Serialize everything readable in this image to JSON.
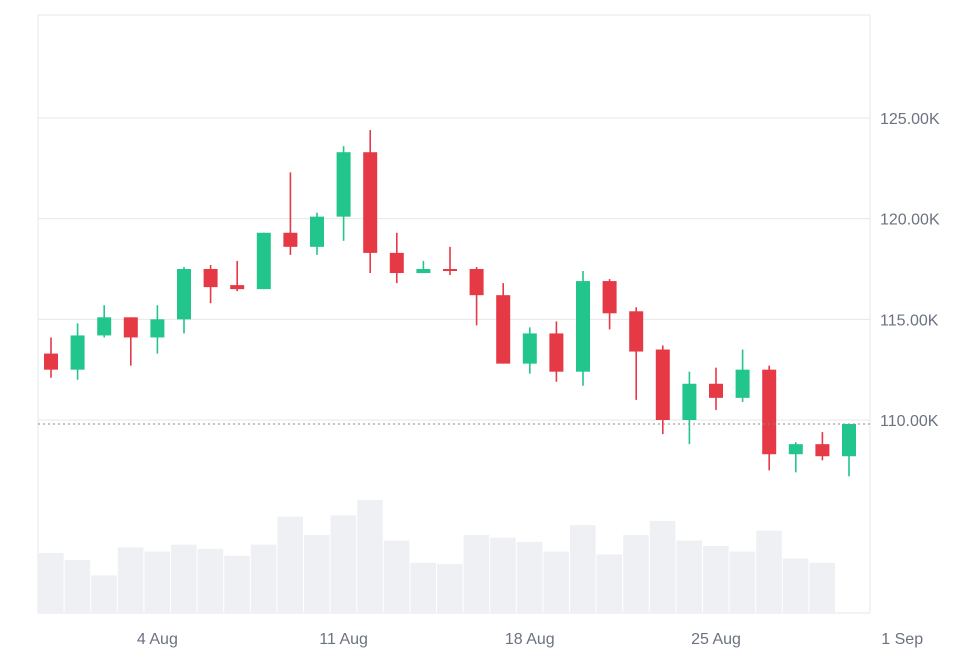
{
  "chart_data": {
    "type": "candlestick",
    "y_ticks": [
      {
        "label": "125.00K",
        "value": 125000
      },
      {
        "label": "120.00K",
        "value": 120000
      },
      {
        "label": "115.00K",
        "value": 115000
      },
      {
        "label": "110.00K",
        "value": 110000
      }
    ],
    "x_ticks": [
      {
        "label": "4 Aug",
        "date": "2025-08-04"
      },
      {
        "label": "11 Aug",
        "date": "2025-08-11"
      },
      {
        "label": "18 Aug",
        "date": "2025-08-18"
      },
      {
        "label": "25 Aug",
        "date": "2025-08-25"
      },
      {
        "label": "1 Sep",
        "date": "2025-09-01"
      }
    ],
    "ylim": [
      100000,
      130000
    ],
    "current_price": 109800,
    "grid": true,
    "colors": {
      "up": "#22c58b",
      "down": "#e63946",
      "volume": "#eef0f3",
      "grid": "#e5e7eb",
      "dotted": "#888888"
    },
    "candles": [
      {
        "date": "2025-07-31",
        "open": 113300,
        "high": 114100,
        "low": 112100,
        "close": 112500,
        "volume": 43
      },
      {
        "date": "2025-08-01",
        "open": 112500,
        "high": 114800,
        "low": 112000,
        "close": 114200,
        "volume": 38
      },
      {
        "date": "2025-08-02",
        "open": 114200,
        "high": 115700,
        "low": 114100,
        "close": 115100,
        "volume": 27
      },
      {
        "date": "2025-08-03",
        "open": 115100,
        "high": 115100,
        "low": 112700,
        "close": 114100,
        "volume": 47
      },
      {
        "date": "2025-08-04",
        "open": 114100,
        "high": 115700,
        "low": 113300,
        "close": 115000,
        "volume": 44
      },
      {
        "date": "2025-08-05",
        "open": 115000,
        "high": 117600,
        "low": 114300,
        "close": 117500,
        "volume": 49
      },
      {
        "date": "2025-08-06",
        "open": 117500,
        "high": 117700,
        "low": 115800,
        "close": 116600,
        "volume": 46
      },
      {
        "date": "2025-08-07",
        "open": 116700,
        "high": 117900,
        "low": 116400,
        "close": 116500,
        "volume": 41
      },
      {
        "date": "2025-08-08",
        "open": 116500,
        "high": 119300,
        "low": 116500,
        "close": 119300,
        "volume": 49
      },
      {
        "date": "2025-08-09",
        "open": 119300,
        "high": 122300,
        "low": 118200,
        "close": 118600,
        "volume": 69
      },
      {
        "date": "2025-08-10",
        "open": 118600,
        "high": 120300,
        "low": 118200,
        "close": 120100,
        "volume": 56
      },
      {
        "date": "2025-08-11",
        "open": 120100,
        "high": 123600,
        "low": 118900,
        "close": 123300,
        "volume": 70
      },
      {
        "date": "2025-08-12",
        "open": 123300,
        "high": 124400,
        "low": 117300,
        "close": 118300,
        "volume": 81
      },
      {
        "date": "2025-08-13",
        "open": 118300,
        "high": 119300,
        "low": 116800,
        "close": 117300,
        "volume": 52
      },
      {
        "date": "2025-08-14",
        "open": 117300,
        "high": 117900,
        "low": 117300,
        "close": 117500,
        "volume": 36
      },
      {
        "date": "2025-08-15",
        "open": 117500,
        "high": 118600,
        "low": 117200,
        "close": 117400,
        "volume": 35
      },
      {
        "date": "2025-08-16",
        "open": 117500,
        "high": 117600,
        "low": 114700,
        "close": 116200,
        "volume": 56
      },
      {
        "date": "2025-08-17",
        "open": 116200,
        "high": 116800,
        "low": 112800,
        "close": 112800,
        "volume": 54
      },
      {
        "date": "2025-08-18",
        "open": 112800,
        "high": 114600,
        "low": 112300,
        "close": 114300,
        "volume": 51
      },
      {
        "date": "2025-08-19",
        "open": 114300,
        "high": 114900,
        "low": 111900,
        "close": 112400,
        "volume": 44
      },
      {
        "date": "2025-08-20",
        "open": 112400,
        "high": 117400,
        "low": 111700,
        "close": 116900,
        "volume": 63
      },
      {
        "date": "2025-08-21",
        "open": 116900,
        "high": 117000,
        "low": 114500,
        "close": 115300,
        "volume": 42
      },
      {
        "date": "2025-08-22",
        "open": 115400,
        "high": 115600,
        "low": 111000,
        "close": 113400,
        "volume": 56
      },
      {
        "date": "2025-08-23",
        "open": 113500,
        "high": 113700,
        "low": 109300,
        "close": 110000,
        "volume": 66
      },
      {
        "date": "2025-08-24",
        "open": 110000,
        "high": 112400,
        "low": 108800,
        "close": 111800,
        "volume": 52
      },
      {
        "date": "2025-08-25",
        "open": 111800,
        "high": 112600,
        "low": 110500,
        "close": 111100,
        "volume": 48
      },
      {
        "date": "2025-08-26",
        "open": 111100,
        "high": 113500,
        "low": 110900,
        "close": 112500,
        "volume": 44
      },
      {
        "date": "2025-08-27",
        "open": 112500,
        "high": 112700,
        "low": 107500,
        "close": 108300,
        "volume": 59
      },
      {
        "date": "2025-08-28",
        "open": 108300,
        "high": 108900,
        "low": 107400,
        "close": 108800,
        "volume": 39
      },
      {
        "date": "2025-08-29",
        "open": 108800,
        "high": 109400,
        "low": 108000,
        "close": 108200,
        "volume": 36
      },
      {
        "date": "2025-08-30",
        "open": 108200,
        "high": 109800,
        "low": 107200,
        "close": 109800,
        "volume": null
      }
    ]
  }
}
